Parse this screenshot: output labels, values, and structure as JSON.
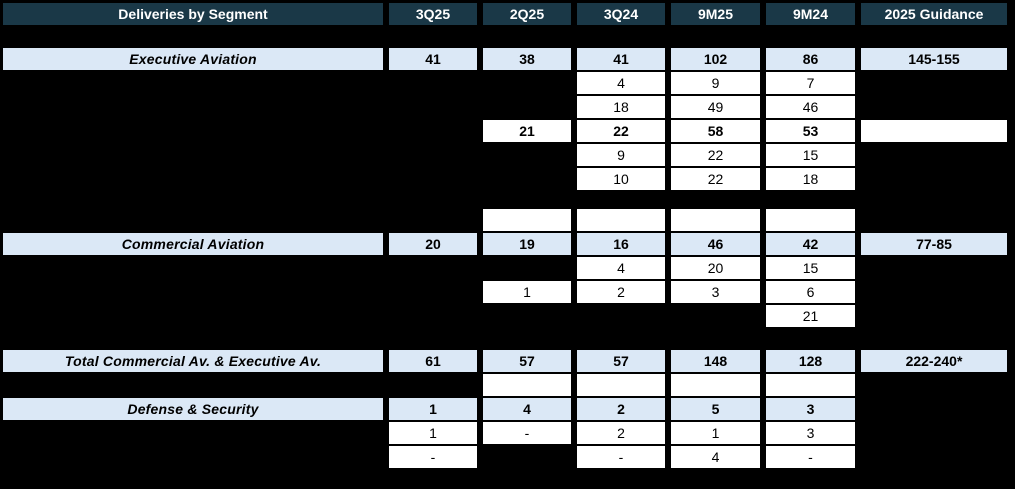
{
  "title": "Deliveries by Segment",
  "columns": [
    "3Q25",
    "2Q25",
    "3Q24",
    "9M25",
    "9M24",
    "2025 Guidance"
  ],
  "colors": {
    "page_bg": "#000000",
    "header_bg": "#1a3847",
    "header_text": "#ffffff",
    "highlight_bg": "#dbe8f6",
    "cell_bg": "#ffffff",
    "value_text": "#000000"
  },
  "rows": [
    {
      "name": "row-executive-aviation",
      "style": "segment",
      "gap_before": 23,
      "label": "Executive Aviation",
      "cells": [
        {
          "col": 0,
          "text": "41"
        },
        {
          "col": 1,
          "text": "38"
        },
        {
          "col": 2,
          "text": "41"
        },
        {
          "col": 3,
          "text": "102"
        },
        {
          "col": 4,
          "text": "86"
        },
        {
          "col": 5,
          "text": "145-155"
        }
      ]
    },
    {
      "name": "row-exec-detail-1",
      "style": "detail",
      "gap_before": 2,
      "cells": [
        {
          "col": 2,
          "text": "4"
        },
        {
          "col": 3,
          "text": "9"
        },
        {
          "col": 4,
          "text": "7"
        }
      ]
    },
    {
      "name": "row-exec-detail-2",
      "style": "detail",
      "gap_before": 2,
      "cells": [
        {
          "col": 2,
          "text": "18"
        },
        {
          "col": 3,
          "text": "49"
        },
        {
          "col": 4,
          "text": "46"
        }
      ]
    },
    {
      "name": "row-exec-detail-3",
      "style": "detail",
      "gap_before": 2,
      "bold": true,
      "cells": [
        {
          "col": 1,
          "text": "21"
        },
        {
          "col": 2,
          "text": "22"
        },
        {
          "col": 3,
          "text": "58"
        },
        {
          "col": 4,
          "text": "53"
        },
        {
          "col": 5,
          "text": ""
        }
      ]
    },
    {
      "name": "row-exec-detail-4",
      "style": "detail",
      "gap_before": 2,
      "cells": [
        {
          "col": 2,
          "text": "9"
        },
        {
          "col": 3,
          "text": "22"
        },
        {
          "col": 4,
          "text": "15"
        }
      ]
    },
    {
      "name": "row-exec-detail-5",
      "style": "detail",
      "gap_before": 2,
      "cells": [
        {
          "col": 2,
          "text": "10"
        },
        {
          "col": 3,
          "text": "22"
        },
        {
          "col": 4,
          "text": "18"
        }
      ]
    },
    {
      "name": "row-spacer-cells-1",
      "style": "detail",
      "gap_before": 19,
      "cells": [
        {
          "col": 1,
          "text": ""
        },
        {
          "col": 2,
          "text": ""
        },
        {
          "col": 3,
          "text": ""
        },
        {
          "col": 4,
          "text": ""
        }
      ]
    },
    {
      "name": "row-commercial-aviation",
      "style": "segment",
      "gap_before": 2,
      "label": "Commercial Aviation",
      "cells": [
        {
          "col": 0,
          "text": "20"
        },
        {
          "col": 1,
          "text": "19"
        },
        {
          "col": 2,
          "text": "16"
        },
        {
          "col": 3,
          "text": "46"
        },
        {
          "col": 4,
          "text": "42"
        },
        {
          "col": 5,
          "text": "77-85"
        }
      ]
    },
    {
      "name": "row-comm-detail-1",
      "style": "detail",
      "gap_before": 2,
      "cells": [
        {
          "col": 2,
          "text": "4"
        },
        {
          "col": 3,
          "text": "20"
        },
        {
          "col": 4,
          "text": "15"
        }
      ]
    },
    {
      "name": "row-comm-detail-2",
      "style": "detail",
      "gap_before": 2,
      "cells": [
        {
          "col": 1,
          "text": "1"
        },
        {
          "col": 2,
          "text": "2"
        },
        {
          "col": 3,
          "text": "3"
        },
        {
          "col": 4,
          "text": "6"
        }
      ]
    },
    {
      "name": "row-comm-detail-3",
      "style": "detail",
      "gap_before": 2,
      "cells": [
        {
          "col": 4,
          "text": "21"
        }
      ]
    },
    {
      "name": "row-total",
      "style": "segment",
      "gap_before": 23,
      "label": "Total Commercial Av. & Executive Av.",
      "cells": [
        {
          "col": 0,
          "text": "61"
        },
        {
          "col": 1,
          "text": "57"
        },
        {
          "col": 2,
          "text": "57"
        },
        {
          "col": 3,
          "text": "148"
        },
        {
          "col": 4,
          "text": "128"
        },
        {
          "col": 5,
          "text": "222-240*"
        }
      ]
    },
    {
      "name": "row-spacer-cells-2",
      "style": "detail",
      "gap_before": 2,
      "cells": [
        {
          "col": 1,
          "text": ""
        },
        {
          "col": 2,
          "text": ""
        },
        {
          "col": 3,
          "text": ""
        },
        {
          "col": 4,
          "text": ""
        }
      ]
    },
    {
      "name": "row-defense-security",
      "style": "segment",
      "gap_before": 2,
      "label": "Defense & Security",
      "cells": [
        {
          "col": 0,
          "text": "1"
        },
        {
          "col": 1,
          "text": "4"
        },
        {
          "col": 2,
          "text": "2"
        },
        {
          "col": 3,
          "text": "5"
        },
        {
          "col": 4,
          "text": "3"
        }
      ]
    },
    {
      "name": "row-defense-detail-1",
      "style": "detail",
      "gap_before": 2,
      "cells": [
        {
          "col": 0,
          "text": "1"
        },
        {
          "col": 1,
          "text": "-"
        },
        {
          "col": 2,
          "text": "2"
        },
        {
          "col": 3,
          "text": "1"
        },
        {
          "col": 4,
          "text": "3"
        }
      ]
    },
    {
      "name": "row-defense-detail-2",
      "style": "detail",
      "gap_before": 2,
      "cells": [
        {
          "col": 0,
          "text": "-"
        },
        {
          "col": 2,
          "text": "-"
        },
        {
          "col": 3,
          "text": "4"
        },
        {
          "col": 4,
          "text": "-"
        }
      ]
    }
  ],
  "chart_data": {
    "type": "table",
    "title": "Deliveries by Segment",
    "columns": [
      "Deliveries by Segment",
      "3Q25",
      "2Q25",
      "3Q24",
      "9M25",
      "9M24",
      "2025 Guidance"
    ],
    "rows": [
      [
        "Executive Aviation",
        "41",
        "38",
        "41",
        "102",
        "86",
        "145-155"
      ],
      [
        "",
        "",
        "",
        "4",
        "9",
        "7",
        ""
      ],
      [
        "",
        "",
        "",
        "18",
        "49",
        "46",
        ""
      ],
      [
        "",
        "",
        "21",
        "22",
        "58",
        "53",
        ""
      ],
      [
        "",
        "",
        "",
        "9",
        "22",
        "15",
        ""
      ],
      [
        "",
        "",
        "",
        "10",
        "22",
        "18",
        ""
      ],
      [
        "Commercial Aviation",
        "20",
        "19",
        "16",
        "46",
        "42",
        "77-85"
      ],
      [
        "",
        "",
        "",
        "4",
        "20",
        "15",
        ""
      ],
      [
        "",
        "",
        "1",
        "2",
        "3",
        "6",
        ""
      ],
      [
        "",
        "",
        "",
        "",
        "",
        "21",
        ""
      ],
      [
        "Total Commercial Av. & Executive Av.",
        "61",
        "57",
        "57",
        "148",
        "128",
        "222-240*"
      ],
      [
        "Defense & Security",
        "1",
        "4",
        "2",
        "5",
        "3",
        ""
      ],
      [
        "",
        "1",
        "-",
        "2",
        "1",
        "3",
        ""
      ],
      [
        "",
        "-",
        "",
        "-",
        "4",
        "-",
        ""
      ]
    ]
  }
}
